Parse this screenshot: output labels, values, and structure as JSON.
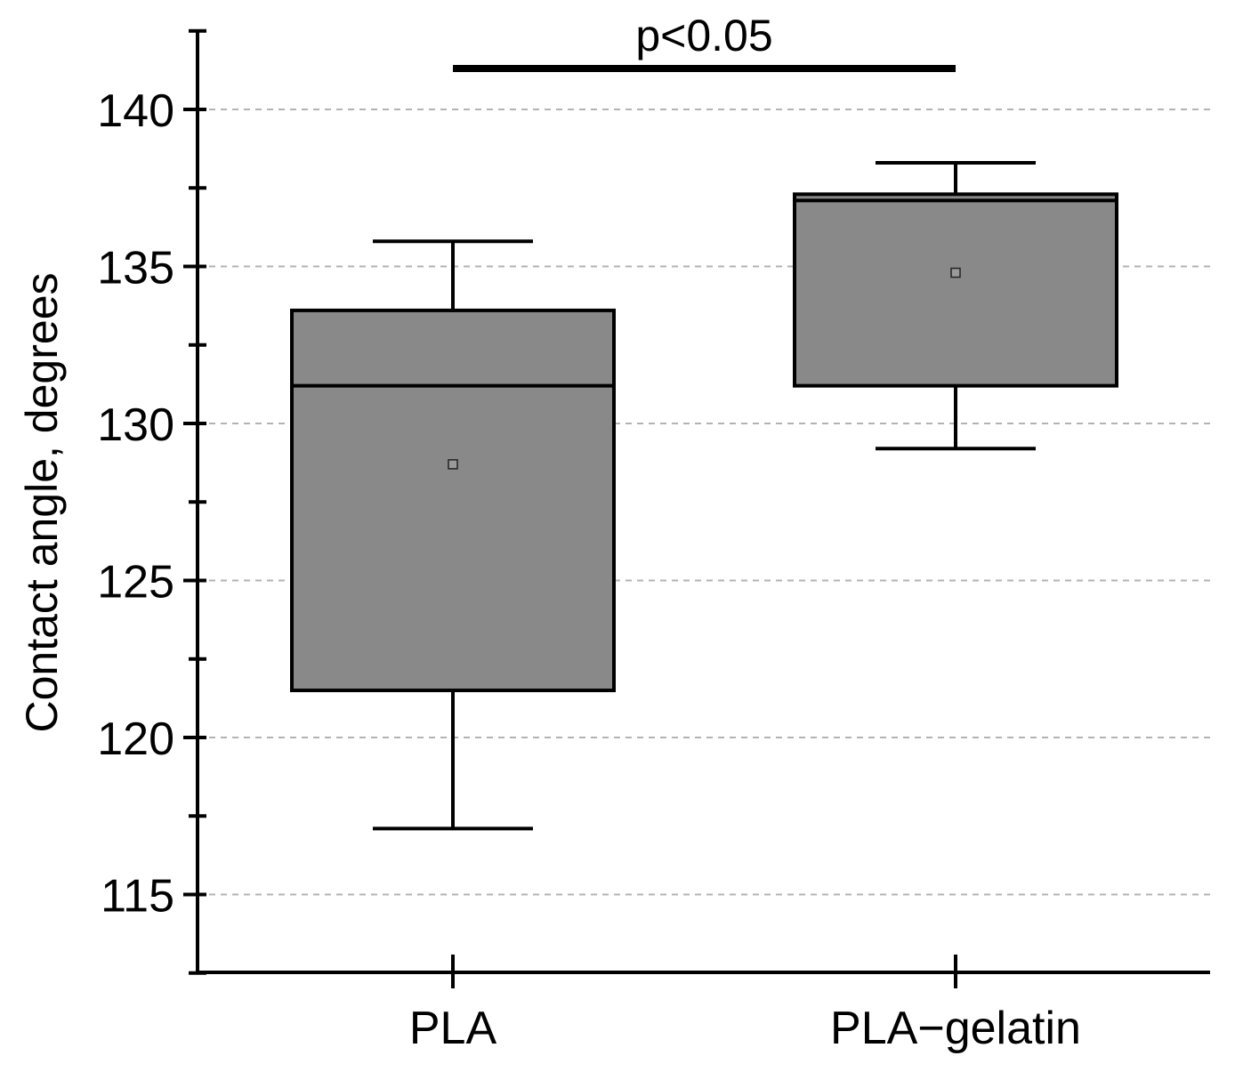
{
  "chart_data": {
    "type": "box",
    "title": "",
    "xlabel": "",
    "ylabel": "Contact angle, degrees",
    "ylim": [
      112.5,
      142.5
    ],
    "yticks": [
      115,
      120,
      125,
      130,
      135,
      140
    ],
    "ytick_labels": [
      "115",
      "120",
      "125",
      "130",
      "135",
      "140"
    ],
    "minor_step": 2.5,
    "grid": true,
    "categories": [
      "PLA",
      "PLA−gelatin"
    ],
    "boxes": [
      {
        "name": "PLA",
        "whisker_low": 117.1,
        "q1": 121.5,
        "median": 131.2,
        "q3": 133.6,
        "whisker_high": 135.8,
        "mean": 128.7
      },
      {
        "name": "PLA−gelatin",
        "whisker_low": 129.2,
        "q1": 131.2,
        "median": 137.1,
        "q3": 137.3,
        "whisker_high": 138.3,
        "mean": 134.8
      }
    ],
    "box_color": "#898989",
    "annotation": {
      "text": "p<0.05",
      "from": "PLA",
      "to": "PLA−gelatin",
      "y": 141.3
    }
  }
}
